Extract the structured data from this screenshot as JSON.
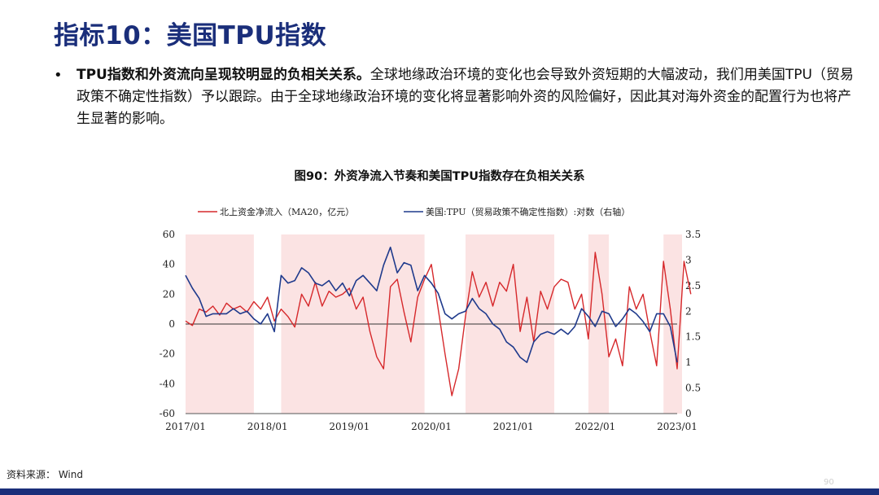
{
  "page": {
    "title": "指标10：美国TPU指数",
    "bullet_bold": "TPU指数和外资流向呈现较明显的负相关关系。",
    "bullet_rest": "全球地缘政治环境的变化也会导致外资短期的大幅波动，我们用美国TPU（贸易政策不确定性指数）予以跟踪。由于全球地缘政治环境的变化将显著影响外资的风险偏好，因此其对海外资金的配置行为也将产生显著的影响。",
    "chart_caption": "图90：外资净流入节奏和美国TPU指数存在负相关关系",
    "source": "资料来源： Wind",
    "page_number": "90"
  },
  "colors": {
    "title": "#1a2e7a",
    "north_flow": "#d6282b",
    "tpu": "#1f3a8c",
    "shade": "#fbe3e3",
    "footer": "#1a2e7a"
  },
  "chart_data": {
    "type": "line",
    "title": "",
    "xlabel": "",
    "ylabel": "",
    "x_range": [
      "2017/01",
      "2023/01"
    ],
    "x_ticks": [
      "2017/01",
      "2018/01",
      "2019/01",
      "2020/01",
      "2021/01",
      "2022/01",
      "2023/01"
    ],
    "ylim": [
      -60,
      60
    ],
    "y_ticks": [
      -60,
      -40,
      -20,
      0,
      20,
      40,
      60
    ],
    "y2lim": [
      0,
      3.5
    ],
    "y2_ticks": [
      "0",
      "0.5",
      "1",
      "1.5",
      "2",
      "2.5",
      "3",
      "3.5"
    ],
    "legend_position": "top",
    "shaded_periods": [
      {
        "start": "2017-01",
        "end": "2017-11"
      },
      {
        "start": "2018-03",
        "end": "2019-12"
      },
      {
        "start": "2020-06",
        "end": "2021-07"
      },
      {
        "start": "2021-12",
        "end": "2022-03"
      },
      {
        "start": "2022-11",
        "end": "2023-03"
      }
    ],
    "series": [
      {
        "name": "北上资金净流入（MA20，亿元）",
        "axis": "left",
        "x": [
          "2017-01",
          "2017-02",
          "2017-03",
          "2017-04",
          "2017-05",
          "2017-06",
          "2017-07",
          "2017-08",
          "2017-09",
          "2017-10",
          "2017-11",
          "2017-12",
          "2018-01",
          "2018-02",
          "2018-03",
          "2018-04",
          "2018-05",
          "2018-06",
          "2018-07",
          "2018-08",
          "2018-09",
          "2018-10",
          "2018-11",
          "2018-12",
          "2019-01",
          "2019-02",
          "2019-03",
          "2019-04",
          "2019-05",
          "2019-06",
          "2019-07",
          "2019-08",
          "2019-09",
          "2019-10",
          "2019-11",
          "2019-12",
          "2020-01",
          "2020-02",
          "2020-03",
          "2020-04",
          "2020-05",
          "2020-06",
          "2020-07",
          "2020-08",
          "2020-09",
          "2020-10",
          "2020-11",
          "2020-12",
          "2021-01",
          "2021-02",
          "2021-03",
          "2021-04",
          "2021-05",
          "2021-06",
          "2021-07",
          "2021-08",
          "2021-09",
          "2021-10",
          "2021-11",
          "2021-12",
          "2022-01",
          "2022-02",
          "2022-03",
          "2022-04",
          "2022-05",
          "2022-06",
          "2022-07",
          "2022-08",
          "2022-09",
          "2022-10",
          "2022-11",
          "2022-12",
          "2023-01",
          "2023-02",
          "2023-03"
        ],
        "values": [
          2,
          -1,
          10,
          8,
          12,
          6,
          14,
          10,
          12,
          8,
          15,
          10,
          18,
          2,
          10,
          5,
          -2,
          20,
          12,
          28,
          12,
          22,
          18,
          20,
          24,
          10,
          18,
          -5,
          -22,
          -30,
          25,
          30,
          8,
          -12,
          18,
          30,
          40,
          10,
          -20,
          -48,
          -30,
          5,
          35,
          18,
          28,
          12,
          28,
          22,
          40,
          -5,
          18,
          -12,
          22,
          10,
          25,
          30,
          28,
          10,
          20,
          -10,
          48,
          20,
          -22,
          -10,
          -28,
          25,
          10,
          20,
          -5,
          -28,
          42,
          10,
          -30,
          42,
          20
        ]
      },
      {
        "name": "美国:TPU（贸易政策不确定性指数）:对数（右轴）",
        "axis": "right",
        "x": [
          "2017-01",
          "2017-02",
          "2017-03",
          "2017-04",
          "2017-05",
          "2017-06",
          "2017-07",
          "2017-08",
          "2017-09",
          "2017-10",
          "2017-11",
          "2017-12",
          "2018-01",
          "2018-02",
          "2018-03",
          "2018-04",
          "2018-05",
          "2018-06",
          "2018-07",
          "2018-08",
          "2018-09",
          "2018-10",
          "2018-11",
          "2018-12",
          "2019-01",
          "2019-02",
          "2019-03",
          "2019-04",
          "2019-05",
          "2019-06",
          "2019-07",
          "2019-08",
          "2019-09",
          "2019-10",
          "2019-11",
          "2019-12",
          "2020-01",
          "2020-02",
          "2020-03",
          "2020-04",
          "2020-05",
          "2020-06",
          "2020-07",
          "2020-08",
          "2020-09",
          "2020-10",
          "2020-11",
          "2020-12",
          "2021-01",
          "2021-02",
          "2021-03",
          "2021-04",
          "2021-05",
          "2021-06",
          "2021-07",
          "2021-08",
          "2021-09",
          "2021-10",
          "2021-11",
          "2021-12",
          "2022-01",
          "2022-02",
          "2022-03",
          "2022-04",
          "2022-05",
          "2022-06",
          "2022-07",
          "2022-08",
          "2022-09",
          "2022-10",
          "2022-11",
          "2022-12",
          "2023-01"
        ],
        "values": [
          2.7,
          2.45,
          2.25,
          1.9,
          1.95,
          1.95,
          1.95,
          2.05,
          1.95,
          2.0,
          1.85,
          1.75,
          1.95,
          1.6,
          2.7,
          2.55,
          2.6,
          2.85,
          2.75,
          2.55,
          2.5,
          2.6,
          2.4,
          2.55,
          2.3,
          2.6,
          2.7,
          2.55,
          2.4,
          2.9,
          3.25,
          2.75,
          2.95,
          2.9,
          2.4,
          2.7,
          2.55,
          2.35,
          1.95,
          1.85,
          1.95,
          2.0,
          2.25,
          2.05,
          1.95,
          1.75,
          1.65,
          1.4,
          1.3,
          1.1,
          1.0,
          1.4,
          1.55,
          1.6,
          1.55,
          1.65,
          1.55,
          1.7,
          2.05,
          1.9,
          1.7,
          2.0,
          1.95,
          1.7,
          1.85,
          2.05,
          1.95,
          1.8,
          1.6,
          1.95,
          1.95,
          1.7,
          1.0
        ]
      }
    ]
  }
}
